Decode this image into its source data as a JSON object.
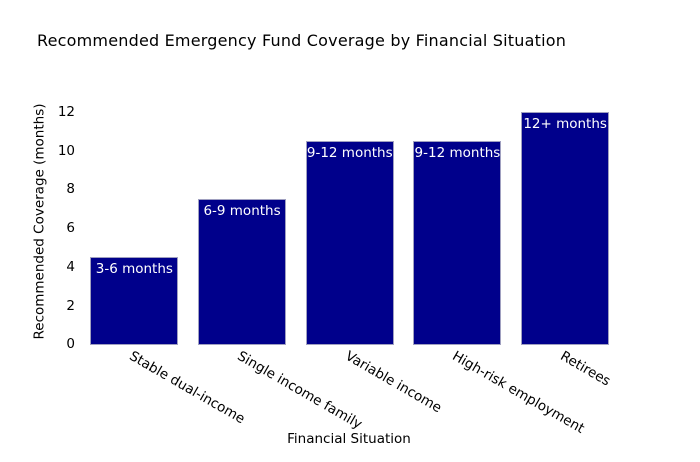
{
  "chart_data": {
    "type": "bar",
    "title": "Recommended Emergency Fund Coverage by Financial Situation",
    "xlabel": "Financial Situation",
    "ylabel": "Recommended Coverage (months)",
    "categories": [
      "Stable dual-income",
      "Single income family",
      "Variable income",
      "High-risk employment",
      "Retirees"
    ],
    "values": [
      4.5,
      7.5,
      10.5,
      10.5,
      12
    ],
    "bar_labels": [
      "3-6 months",
      "6-9 months",
      "9-12 months",
      "9-12 months",
      "12+ months"
    ],
    "yticks": [
      0,
      2,
      4,
      6,
      8,
      10,
      12
    ],
    "ylim": [
      0,
      12.4
    ],
    "xtick_angle_deg": 30,
    "grid": false,
    "legend": "none",
    "bar_label_position": "inside-top",
    "colors": {
      "bar_fill": "#00008B",
      "bar_border": "#a0a0c0",
      "bar_label_text": "#ffffff",
      "text": "#000000",
      "background": "#ffffff"
    }
  }
}
